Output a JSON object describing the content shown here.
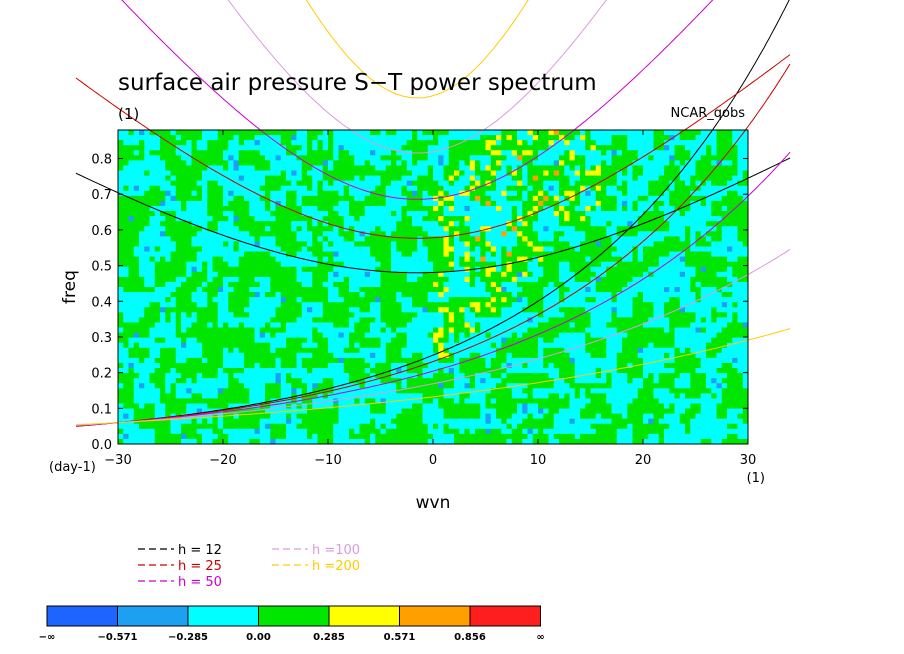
{
  "chart_data": {
    "type": "heatmap",
    "title": "surface air pressure S−T power spectrum",
    "subtitle": "(1)",
    "source_label": "NCAR_qobs",
    "xlabel": "wvn",
    "ylabel": "freq",
    "x_unit_label": "(1)",
    "y_unit_label": "(day-1)",
    "xlim": [
      -30,
      30
    ],
    "ylim": [
      0,
      0.88
    ],
    "x_ticks": [
      -30,
      -20,
      -10,
      0,
      10,
      20,
      30
    ],
    "x_tick_labels": [
      "−30",
      "−20",
      "−10",
      "0",
      "10",
      "20",
      "30"
    ],
    "y_ticks": [
      0.0,
      0.1,
      0.2,
      0.3,
      0.4,
      0.5,
      0.6,
      0.7,
      0.8
    ],
    "y_tick_labels": [
      "0.0",
      "0.1",
      "0.2",
      "0.3",
      "0.4",
      "0.5",
      "0.6",
      "0.7",
      "0.8"
    ],
    "colorbar": {
      "labels": [
        "−∞",
        "−0.571",
        "−0.285",
        "0.00",
        "0.285",
        "0.571",
        "0.856",
        "∞"
      ],
      "colors": [
        "#1e64ff",
        "#1ea0f0",
        "#00ffff",
        "#00e600",
        "#ffff00",
        "#ffa000",
        "#ff1e1e"
      ]
    },
    "dispersion_curves": [
      {
        "name": "h = 12",
        "color": "#000000",
        "equivalent_depth": 12
      },
      {
        "name": "h = 25",
        "color": "#cc0000",
        "equivalent_depth": 25
      },
      {
        "name": "h = 50",
        "color": "#cc00cc",
        "equivalent_depth": 50
      },
      {
        "name": "h =100",
        "color": "#dd99dd",
        "equivalent_depth": 100
      },
      {
        "name": "h =200",
        "color": "#ffcc00",
        "equivalent_depth": 200
      }
    ],
    "field_pattern": "noisy, predominantly cyan and green with sparse yellow/orange spots along the Kelvin-wave band near wvn 0 to 15 and isolated blue spots"
  }
}
